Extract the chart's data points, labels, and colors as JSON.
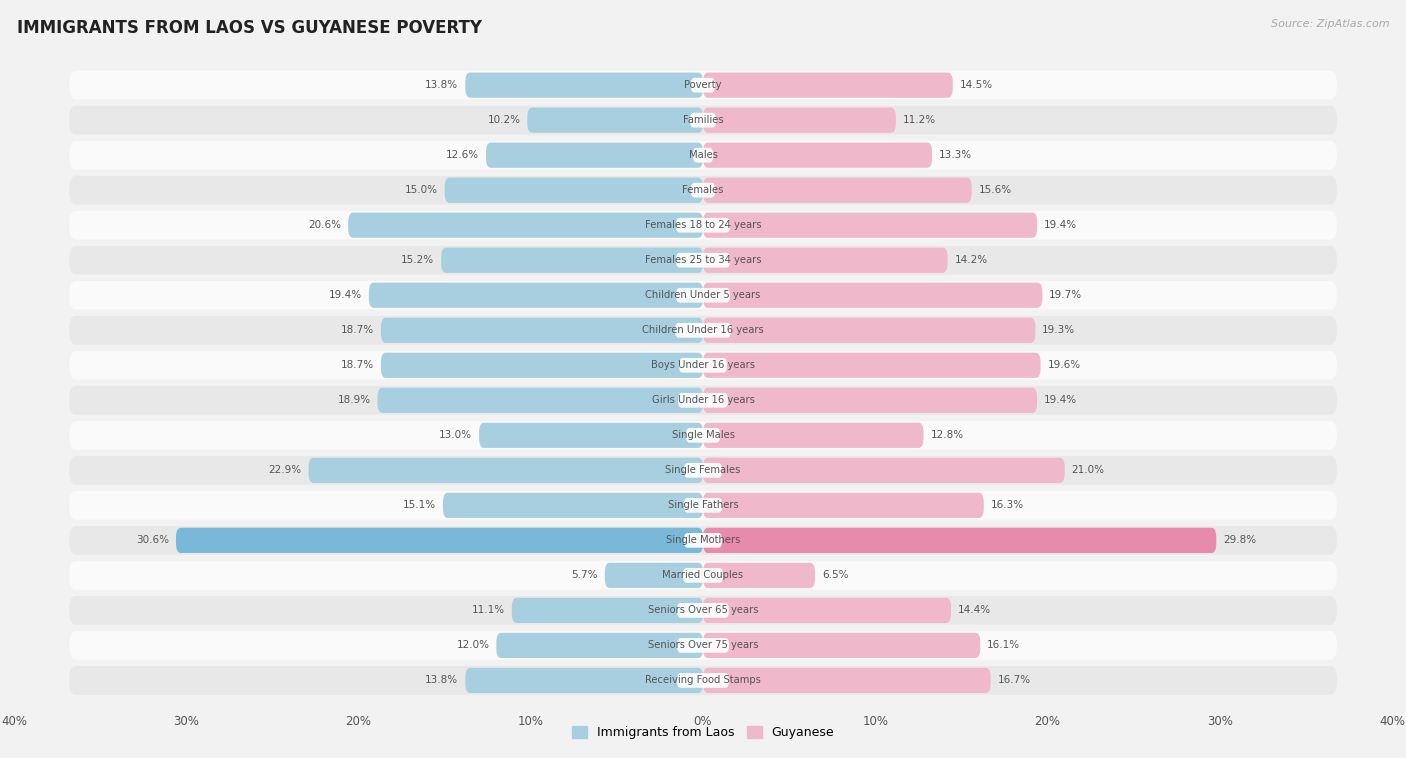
{
  "title": "IMMIGRANTS FROM LAOS VS GUYANESE POVERTY",
  "source": "Source: ZipAtlas.com",
  "categories": [
    "Poverty",
    "Families",
    "Males",
    "Females",
    "Females 18 to 24 years",
    "Females 25 to 34 years",
    "Children Under 5 years",
    "Children Under 16 years",
    "Boys Under 16 years",
    "Girls Under 16 years",
    "Single Males",
    "Single Females",
    "Single Fathers",
    "Single Mothers",
    "Married Couples",
    "Seniors Over 65 years",
    "Seniors Over 75 years",
    "Receiving Food Stamps"
  ],
  "laos_values": [
    13.8,
    10.2,
    12.6,
    15.0,
    20.6,
    15.2,
    19.4,
    18.7,
    18.7,
    18.9,
    13.0,
    22.9,
    15.1,
    30.6,
    5.7,
    11.1,
    12.0,
    13.8
  ],
  "guyanese_values": [
    14.5,
    11.2,
    13.3,
    15.6,
    19.4,
    14.2,
    19.7,
    19.3,
    19.6,
    19.4,
    12.8,
    21.0,
    16.3,
    29.8,
    6.5,
    14.4,
    16.1,
    16.7
  ],
  "laos_color": "#a8cfe0",
  "guyanese_color": "#f0b8cb",
  "laos_highlight_color": "#7ab8d9",
  "guyanese_highlight_color": "#e88aab",
  "bg_color": "#f2f2f2",
  "row_bg_light": "#fafafa",
  "row_bg_dark": "#e8e8e8",
  "axis_max": 40.0,
  "bar_height": 0.72,
  "legend_laos": "Immigrants from Laos",
  "legend_guyanese": "Guyanese"
}
